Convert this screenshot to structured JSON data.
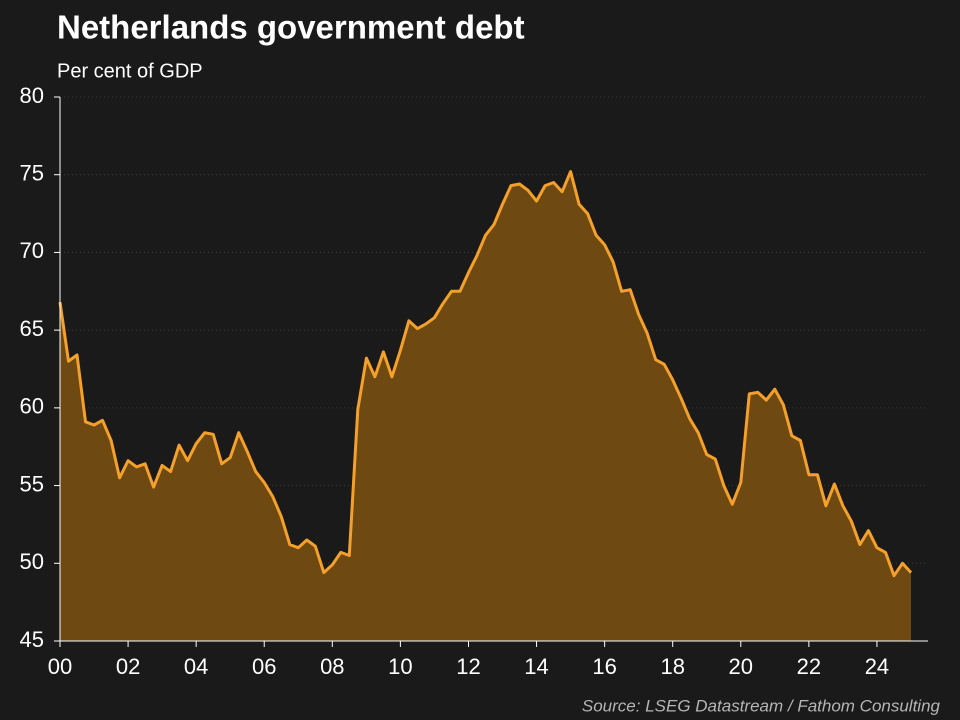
{
  "chart_data": {
    "type": "area",
    "title": "Netherlands government debt",
    "subtitle": "Per cent of GDP",
    "source": "Source: LSEG Datastream / Fathom Consulting",
    "x": [
      2000,
      2000.25,
      2000.5,
      2000.75,
      2001,
      2001.25,
      2001.5,
      2001.75,
      2002,
      2002.25,
      2002.5,
      2002.75,
      2003,
      2003.25,
      2003.5,
      2003.75,
      2004,
      2004.25,
      2004.5,
      2004.75,
      2005,
      2005.25,
      2005.5,
      2005.75,
      2006,
      2006.25,
      2006.5,
      2006.75,
      2007,
      2007.25,
      2007.5,
      2007.75,
      2008,
      2008.25,
      2008.5,
      2008.75,
      2009,
      2009.25,
      2009.5,
      2009.75,
      2010,
      2010.25,
      2010.5,
      2010.75,
      2011,
      2011.25,
      2011.5,
      2011.75,
      2012,
      2012.25,
      2012.5,
      2012.75,
      2013,
      2013.25,
      2013.5,
      2013.75,
      2014,
      2014.25,
      2014.5,
      2014.75,
      2015,
      2015.25,
      2015.5,
      2015.75,
      2016,
      2016.25,
      2016.5,
      2016.75,
      2017,
      2017.25,
      2017.5,
      2017.75,
      2018,
      2018.25,
      2018.5,
      2018.75,
      2019,
      2019.25,
      2019.5,
      2019.75,
      2020,
      2020.25,
      2020.5,
      2020.75,
      2021,
      2021.25,
      2021.5,
      2021.75,
      2022,
      2022.25,
      2022.5,
      2022.75,
      2023,
      2023.25,
      2023.5,
      2023.75,
      2024,
      2024.25,
      2024.5,
      2024.75,
      2025
    ],
    "values": [
      66.8,
      63.0,
      63.4,
      59.1,
      58.9,
      59.2,
      57.9,
      55.5,
      56.6,
      56.2,
      56.4,
      54.9,
      56.3,
      55.9,
      57.6,
      56.6,
      57.7,
      58.4,
      58.3,
      56.4,
      56.8,
      58.4,
      57.2,
      55.9,
      55.2,
      54.3,
      53.0,
      51.2,
      51.0,
      51.5,
      51.1,
      49.4,
      49.9,
      50.7,
      50.5,
      59.9,
      63.2,
      62.0,
      63.6,
      62.0,
      63.7,
      65.6,
      65.1,
      65.4,
      65.8,
      66.7,
      67.5,
      67.5,
      68.7,
      69.8,
      71.1,
      71.8,
      73.1,
      74.3,
      74.4,
      74.0,
      73.3,
      74.3,
      74.5,
      73.9,
      75.2,
      73.1,
      72.5,
      71.1,
      70.5,
      69.4,
      67.5,
      67.6,
      66.0,
      64.8,
      63.1,
      62.8,
      61.8,
      60.6,
      59.3,
      58.4,
      57.0,
      56.7,
      55.0,
      53.8,
      55.2,
      60.9,
      61.0,
      60.5,
      61.2,
      60.2,
      58.2,
      57.9,
      55.7,
      55.7,
      53.7,
      55.1,
      53.7,
      52.7,
      51.2,
      52.1,
      51.0,
      50.7,
      49.2,
      50.0,
      49.4
    ],
    "color": "#f5a02a",
    "fill_color": "#6e4a12",
    "xlim": [
      2000,
      2025.5
    ],
    "xticks": [
      {
        "value": 2000,
        "label": "00"
      },
      {
        "value": 2002,
        "label": "02"
      },
      {
        "value": 2004,
        "label": "04"
      },
      {
        "value": 2006,
        "label": "06"
      },
      {
        "value": 2008,
        "label": "08"
      },
      {
        "value": 2010,
        "label": "10"
      },
      {
        "value": 2012,
        "label": "12"
      },
      {
        "value": 2014,
        "label": "14"
      },
      {
        "value": 2016,
        "label": "16"
      },
      {
        "value": 2018,
        "label": "18"
      },
      {
        "value": 2020,
        "label": "20"
      },
      {
        "value": 2022,
        "label": "22"
      },
      {
        "value": 2024,
        "label": "24"
      }
    ],
    "ylim": [
      45,
      80
    ],
    "yticks": [
      45,
      50,
      55,
      60,
      65,
      70,
      75,
      80
    ],
    "grid": true
  }
}
